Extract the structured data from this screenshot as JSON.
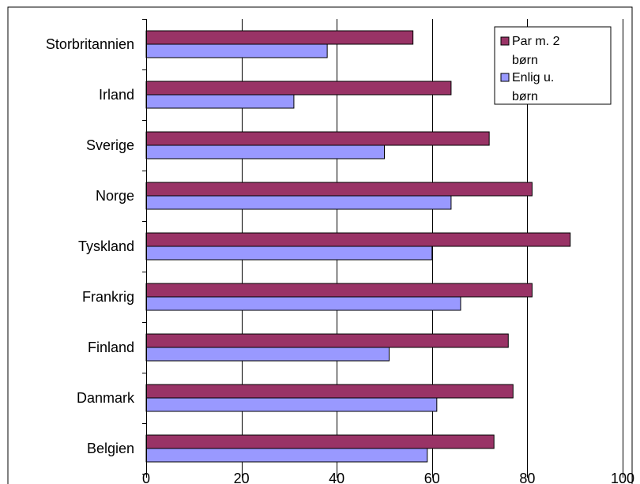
{
  "chart_data": {
    "type": "bar",
    "orientation": "horizontal",
    "categories": [
      "Storbritannien",
      "Irland",
      "Sverige",
      "Norge",
      "Tyskland",
      "Frankrig",
      "Finland",
      "Danmark",
      "Belgien"
    ],
    "series": [
      {
        "name": "Par m. 2 børn",
        "color": "#993366",
        "values": [
          56,
          64,
          72,
          81,
          89,
          81,
          76,
          77,
          73
        ]
      },
      {
        "name": "Enlig u. børn",
        "color": "#9999FF",
        "values": [
          38,
          31,
          50,
          64,
          60,
          66,
          51,
          61,
          59
        ]
      }
    ],
    "xlim": [
      0,
      100
    ],
    "xticks": [
      0,
      20,
      40,
      60,
      80,
      100
    ],
    "grid": "vertical",
    "legend": {
      "placement": "top-right",
      "lines": [
        [
          "Par m. 2",
          "børn"
        ],
        [
          "Enlig  u.",
          "børn"
        ]
      ]
    },
    "title": "",
    "xlabel": "",
    "ylabel": ""
  }
}
